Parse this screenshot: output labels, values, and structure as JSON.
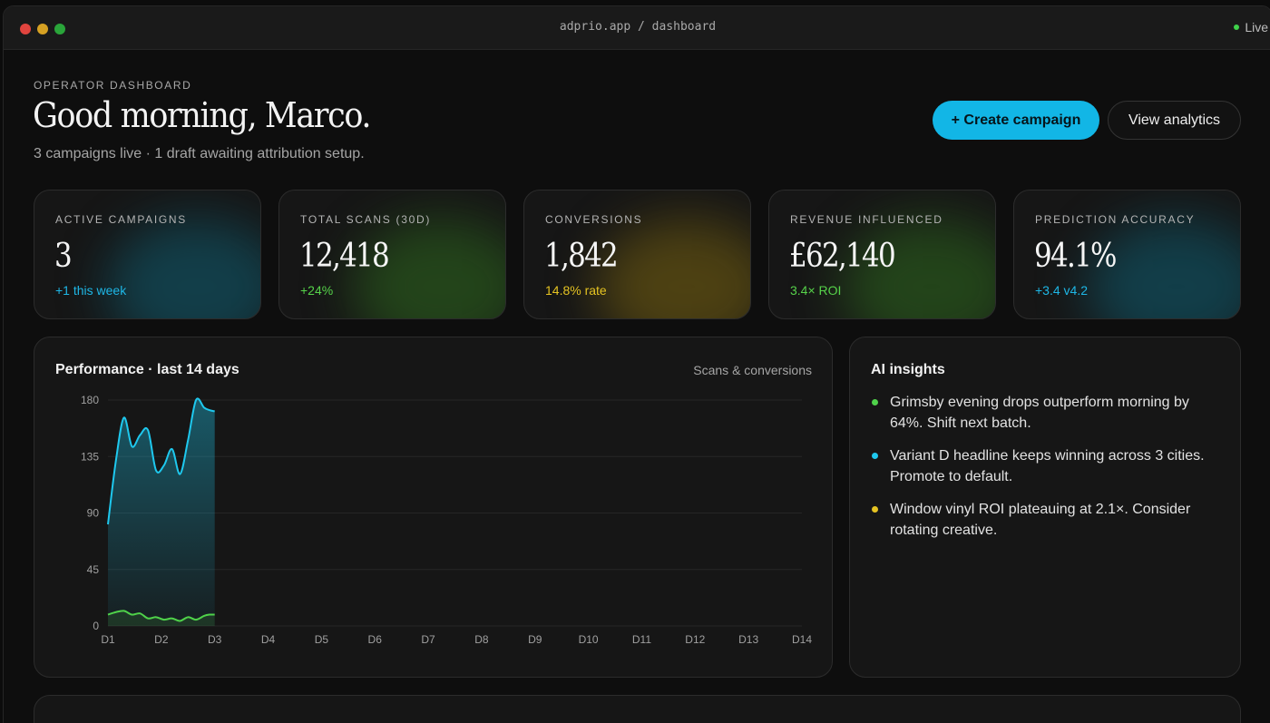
{
  "window": {
    "url": "adprio.app / dashboard",
    "status": "Live"
  },
  "header": {
    "eyebrow": "OPERATOR DASHBOARD",
    "greeting": "Good morning, Marco.",
    "subtitle": "3 campaigns live · 1 draft awaiting attribution setup.",
    "primary_action": "+ Create campaign",
    "secondary_action": "View analytics"
  },
  "stats": [
    {
      "label": "ACTIVE CAMPAIGNS",
      "value": "3",
      "delta": "+1 this week",
      "delta_color": "#1eb7e6",
      "glow": "#0f5f73"
    },
    {
      "label": "TOTAL SCANS (30D)",
      "value": "12,418",
      "delta": "+24%",
      "delta_color": "#56d24a",
      "glow": "#2e6a1e"
    },
    {
      "label": "CONVERSIONS",
      "value": "1,842",
      "delta": "14.8% rate",
      "delta_color": "#e5c322",
      "glow": "#7a6410"
    },
    {
      "label": "REVENUE INFLUENCED",
      "value": "£62,140",
      "delta": "3.4× ROI",
      "delta_color": "#56d24a",
      "glow": "#2e6a1e"
    },
    {
      "label": "PREDICTION ACCURACY",
      "value": "94.1%",
      "delta": "+3.4 v4.2",
      "delta_color": "#1eb7e6",
      "glow": "#0f5f73"
    }
  ],
  "performance": {
    "title": "Performance · last 14 days",
    "subtitle": "Scans & conversions"
  },
  "chart_data": {
    "type": "area",
    "categories": [
      "D1",
      "D2",
      "D3",
      "D4",
      "D5",
      "D6",
      "D7",
      "D8",
      "D9",
      "D10",
      "D11",
      "D12",
      "D13",
      "D14"
    ],
    "ylim": [
      0,
      180
    ],
    "yticks": [
      0,
      45,
      90,
      135,
      180
    ],
    "grid": true,
    "series": [
      {
        "color": "#1ec8ee",
        "x": [
          1,
          1.15,
          1.3,
          1.45,
          1.6,
          1.75,
          1.9,
          2.05,
          2.2,
          2.35,
          2.5,
          2.65,
          2.8,
          2.9,
          3.0
        ],
        "values": [
          81,
          132,
          166,
          143,
          152,
          156,
          124,
          128,
          141,
          121,
          148,
          180,
          174,
          172,
          171
        ]
      },
      {
        "color": "#4fd24a",
        "x": [
          1,
          1.15,
          1.3,
          1.45,
          1.6,
          1.75,
          1.9,
          2.05,
          2.2,
          2.35,
          2.5,
          2.65,
          2.8,
          2.9,
          3.0
        ],
        "values": [
          9,
          11,
          12,
          9,
          10,
          6,
          7,
          5,
          6,
          4,
          7,
          5,
          8,
          9,
          9
        ]
      }
    ]
  },
  "insights": {
    "title": "AI insights",
    "items": [
      {
        "text": "Grimsby evening drops outperform morning by 64%. Shift next batch.",
        "color": "#4fd24a"
      },
      {
        "text": "Variant D headline keeps winning across 3 cities. Promote to default.",
        "color": "#1ec8ee"
      },
      {
        "text": "Window vinyl ROI plateauing at 2.1×. Consider rotating creative.",
        "color": "#e5c322"
      }
    ]
  }
}
